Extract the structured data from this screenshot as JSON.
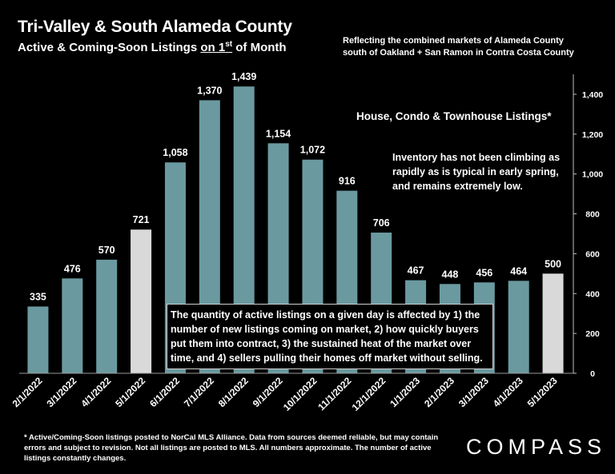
{
  "header": {
    "title": "Tri-Valley & South Alameda County",
    "subtitle_prefix": "Active & Coming-Soon Listings ",
    "subtitle_underlined": "on 1",
    "subtitle_sup": "st",
    "subtitle_suffix": " of Month",
    "top_note": "Reflecting the combined markets of Alameda County south of Oakland + San Ramon in Contra Costa County"
  },
  "series_label": "House, Condo & Townhouse Listings*",
  "inventory_note": "Inventory has not been climbing as rapidly as is typical in early spring, and remains extremely low.",
  "callout": "The quantity of active listings on a given day is affected by 1) the number of new listings coming on market, 2) how quickly buyers put them into contract, 3) the sustained heat of the market over time, and 4) sellers pulling their homes off market without selling.",
  "footnote": "* Active/Coming-Soon listings posted to NorCal MLS Alliance.  Data from sources deemed reliable, but may contain errors and subject to revision.  Not all listings are posted to MLS. All numbers approximate. The number of active listings constantly changes.",
  "logo": "COMPASS",
  "colors": {
    "bar": "#6a9aa0",
    "highlight": "#d9d9d9",
    "background": "#000000"
  },
  "chart_data": {
    "type": "bar",
    "categories": [
      "2/1/2022",
      "3/1/2022",
      "4/1/2022",
      "5/1/2022",
      "6/1/2022",
      "7/1/2022",
      "8/1/2022",
      "9/1/2022",
      "10/1/2022",
      "11/1/2022",
      "12/1/2022",
      "1/1/2023",
      "2/1/2023",
      "3/1/2023",
      "4/1/2023",
      "5/1/2023"
    ],
    "values": [
      335,
      476,
      570,
      721,
      1058,
      1370,
      1439,
      1154,
      1072,
      916,
      706,
      467,
      448,
      456,
      464,
      500
    ],
    "data_labels": [
      "335",
      "476",
      "570",
      "721",
      "1,058",
      "1,370",
      "1,439",
      "1,154",
      "1,072",
      "916",
      "706",
      "467",
      "448",
      "456",
      "464",
      "500"
    ],
    "highlighted": [
      "5/1/2022",
      "5/1/2023"
    ],
    "ylim": [
      0,
      1500
    ],
    "yticks": [
      0,
      200,
      400,
      600,
      800,
      1000,
      1200,
      1400
    ],
    "ytick_labels": [
      "0",
      "200",
      "400",
      "600",
      "800",
      "1,000",
      "1,200",
      "1,400"
    ],
    "y_axis_side": "right",
    "grid": false
  }
}
